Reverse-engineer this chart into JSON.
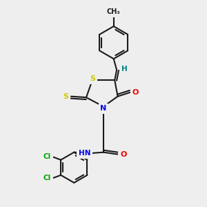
{
  "background_color": "#eeeeee",
  "bond_color": "#1a1a1a",
  "atom_colors": {
    "S": "#cccc00",
    "N": "#0000ee",
    "O": "#ee0000",
    "Cl": "#00aa00",
    "H": "#008080",
    "C": "#1a1a1a"
  },
  "figsize": [
    3.0,
    3.0
  ],
  "dpi": 100
}
